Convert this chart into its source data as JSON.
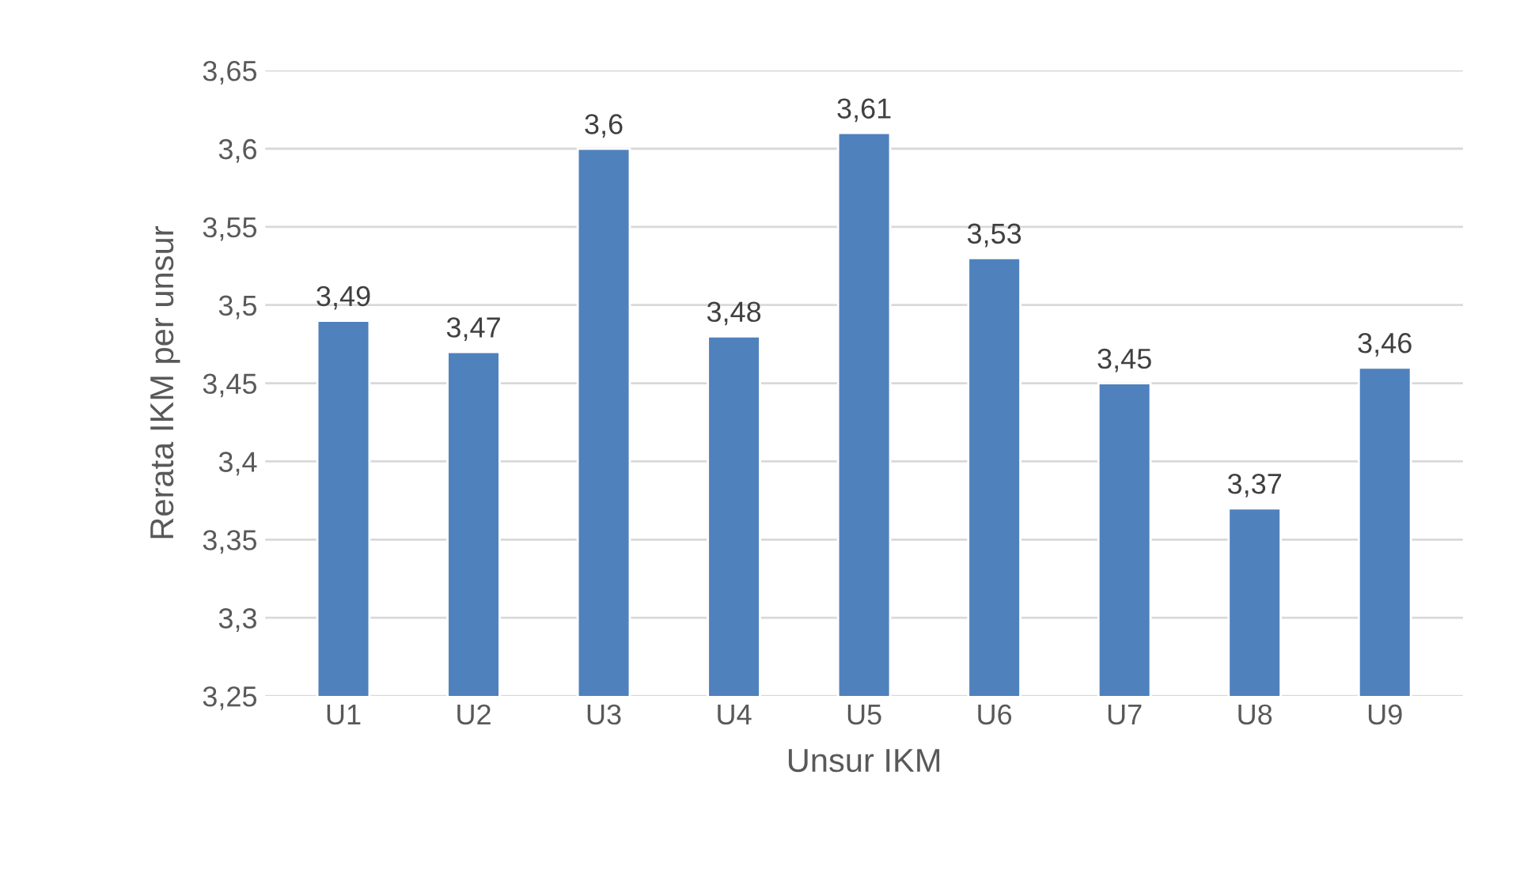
{
  "chart_data": {
    "type": "bar",
    "xlabel": "Unsur IKM",
    "ylabel": "Rerata IKM per unsur",
    "categories": [
      "U1",
      "U2",
      "U3",
      "U4",
      "U5",
      "U6",
      "U7",
      "U8",
      "U9"
    ],
    "values": [
      3.49,
      3.47,
      3.6,
      3.48,
      3.61,
      3.53,
      3.45,
      3.37,
      3.46
    ],
    "value_labels": [
      "3,49",
      "3,47",
      "3,6",
      "3,48",
      "3,61",
      "3,53",
      "3,45",
      "3,37",
      "3,46"
    ],
    "color": "#4f81bd",
    "ylim": [
      3.25,
      3.65
    ],
    "yticks": [
      {
        "value": 3.25,
        "label": "3,25"
      },
      {
        "value": 3.3,
        "label": "3,3"
      },
      {
        "value": 3.35,
        "label": "3,35"
      },
      {
        "value": 3.4,
        "label": "3,4"
      },
      {
        "value": 3.45,
        "label": "3,45"
      },
      {
        "value": 3.5,
        "label": "3,5"
      },
      {
        "value": 3.55,
        "label": "3,55"
      },
      {
        "value": 3.6,
        "label": "3,6"
      },
      {
        "value": 3.65,
        "label": "3,65"
      }
    ],
    "grid": "y"
  }
}
